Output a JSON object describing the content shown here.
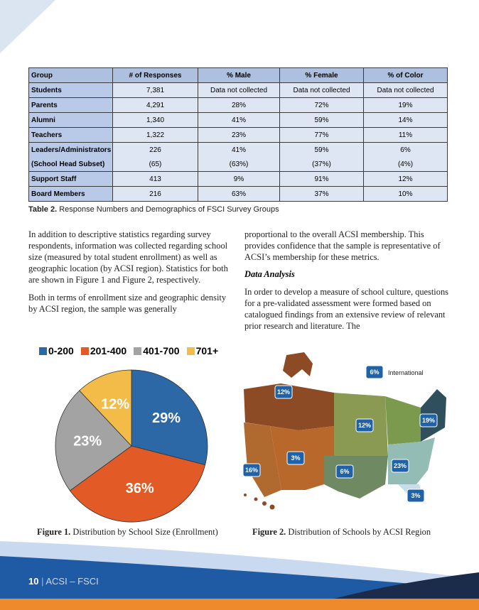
{
  "table": {
    "header": [
      "Group",
      "# of Responses",
      "% Male",
      "% Female",
      "% of Color"
    ],
    "rows": [
      [
        "Students",
        "7,381",
        "Data not collected",
        "Data not collected",
        "Data not collected"
      ],
      [
        "Parents",
        "4,291",
        "28%",
        "72%",
        "19%"
      ],
      [
        "Alumni",
        "1,340",
        "41%",
        "59%",
        "14%"
      ],
      [
        "Teachers",
        "1,322",
        "23%",
        "77%",
        "11%"
      ],
      [
        "Leaders/Administrators",
        "226",
        "41%",
        "59%",
        "6%"
      ],
      [
        "(School Head Subset)",
        "(65)",
        "(63%)",
        "(37%)",
        "(4%)"
      ],
      [
        "Support Staff",
        "413",
        "9%",
        "91%",
        "12%"
      ],
      [
        "Board Members",
        "216",
        "63%",
        "37%",
        "10%"
      ]
    ],
    "caption": {
      "label": "Table 2.",
      "text": "Response Numbers and Demographics of FSCI Survey Groups"
    }
  },
  "left_column": [
    "In addition to descriptive statistics regarding survey respondents, information was collected regarding school size (measured by total student enrollment) as well as geographic location (by ACSI region). Statistics for both are shown in Figure 1 and Figure 2, respectively.",
    "Both in terms of enrollment size and geographic density by ACSI region, the sample was generally"
  ],
  "right_column": {
    "paragraph_1": "proportional to the overall ACSI membership. This provides confidence that the sample is representative of ACSI’s membership for these metrics.",
    "heading": "Data Analysis",
    "paragraph_2": "In order to develop a measure of school culture, questions for a pre-validated assessment were formed based on catalogued findings from an extensive review of relevant prior research and literature. The"
  },
  "chart_data": {
    "type": "pie",
    "categories": [
      "0-200",
      "201-400",
      "401-700",
      "701+"
    ],
    "values": [
      29,
      36,
      23,
      12
    ],
    "value_labels": [
      "29%",
      "36%",
      "23%",
      "12%"
    ],
    "colors": [
      "#2c67a6",
      "#e25a26",
      "#a3a3a3",
      "#f3bb48"
    ]
  },
  "figure_1": {
    "label": "Figure 1.",
    "text": "Distribution by School Size (Enrollment)"
  },
  "map": {
    "regions": [
      "12%",
      "6%",
      "12%",
      "19%",
      "3%",
      "16%",
      "6%",
      "23%",
      "3%"
    ],
    "international": "International"
  },
  "figure_2": {
    "label": "Figure 2.",
    "text": "Distribution of Schools by ACSI Region"
  },
  "footer": {
    "page": "10",
    "text": "ACSI – FSCI"
  }
}
